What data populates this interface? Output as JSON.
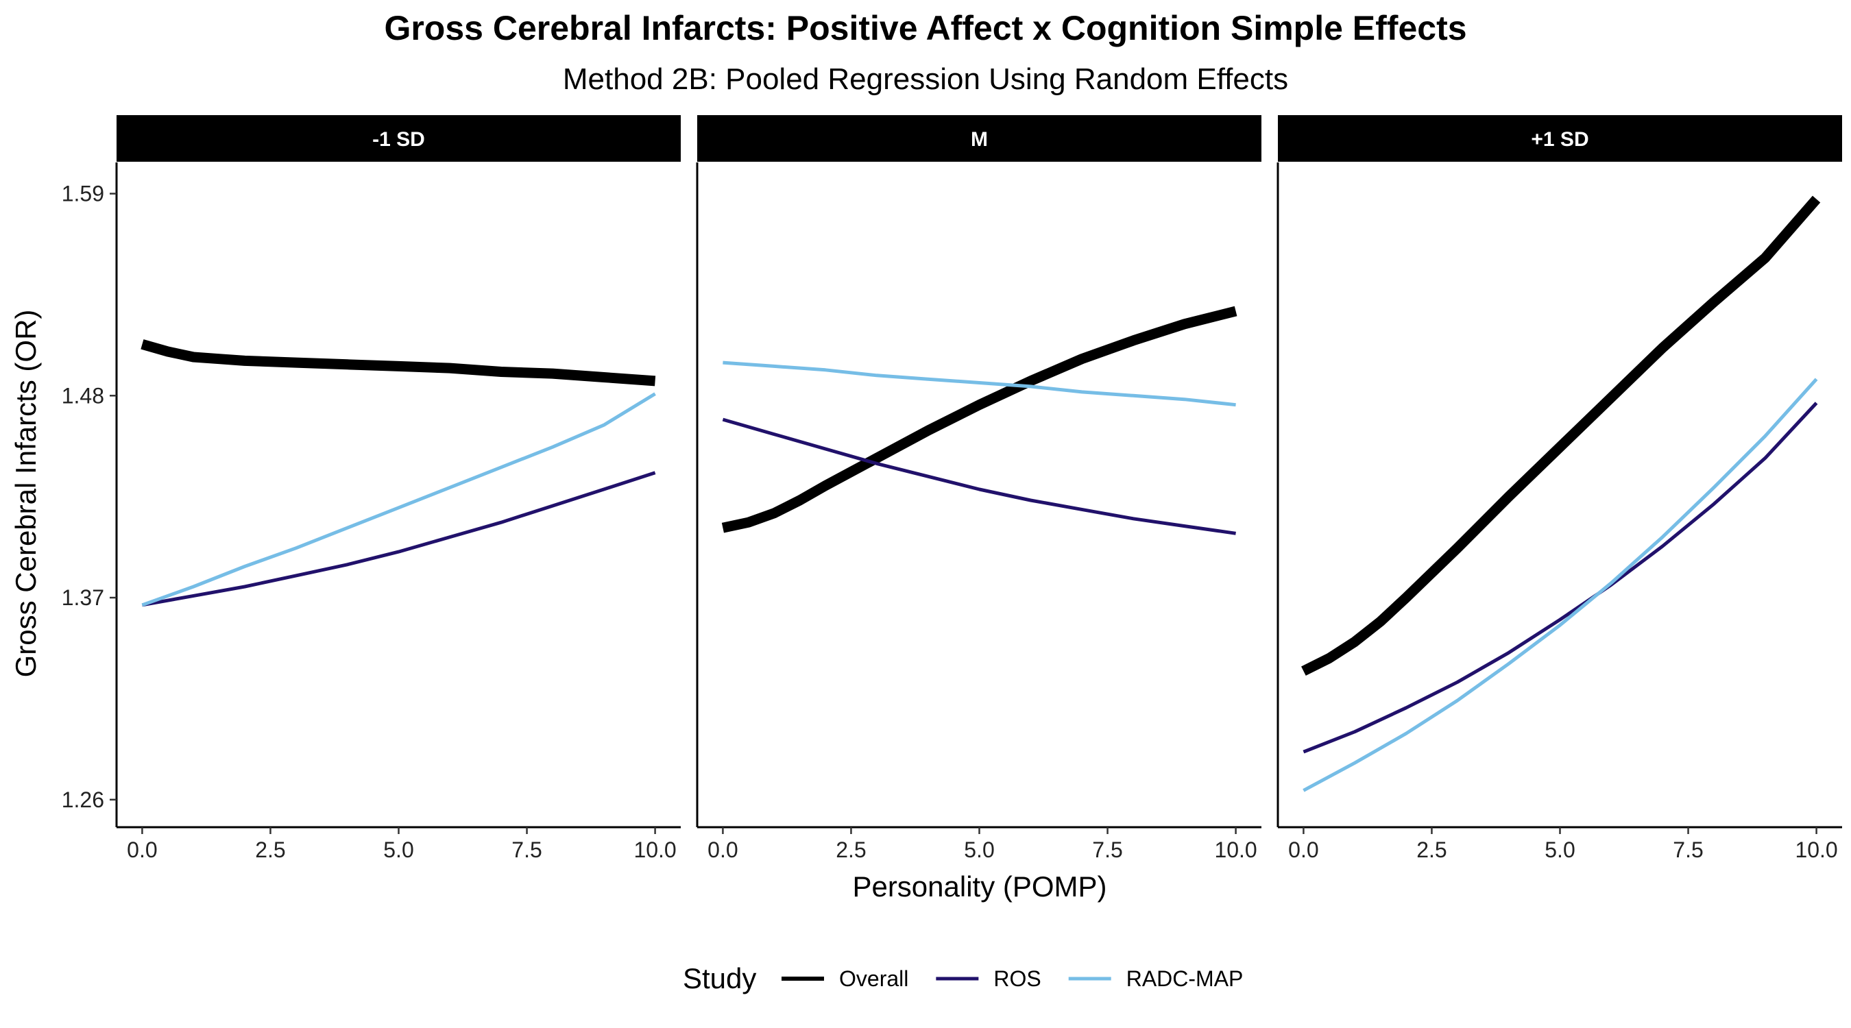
{
  "chart_data": {
    "type": "line",
    "title": "Gross Cerebral Infarcts: Positive Affect x Cognition Simple Effects",
    "subtitle": "Method 2B: Pooled Regression Using Random Effects",
    "xlabel": "Personality (POMP)",
    "ylabel": "Gross Cerebral Infarcts (OR)",
    "xlim": [
      -0.5,
      10.5
    ],
    "ylim": [
      1.245,
      1.607
    ],
    "x_ticks": [
      0.0,
      2.5,
      5.0,
      7.5,
      10.0
    ],
    "x_tick_labels": [
      "0.0",
      "2.5",
      "5.0",
      "7.5",
      "10.0"
    ],
    "y_ticks": [
      1.26,
      1.37,
      1.48,
      1.59
    ],
    "y_tick_labels": [
      "1.26",
      "1.37",
      "1.48",
      "1.59"
    ],
    "grid": false,
    "legend": {
      "title": "Study",
      "position": "bottom",
      "entries": [
        {
          "name": "Overall",
          "color": "#000000"
        },
        {
          "name": "ROS",
          "color": "#21116b"
        },
        {
          "name": "RADC-MAP",
          "color": "#76bde6"
        }
      ]
    },
    "series_styles": {
      "Overall": {
        "color": "#000000",
        "width": 15
      },
      "ROS": {
        "color": "#21116b",
        "width": 5
      },
      "RADC-MAP": {
        "color": "#76bde6",
        "width": 5
      }
    },
    "panels": [
      {
        "label": "-1 SD",
        "series": [
          {
            "name": "Overall",
            "x": [
              0,
              0.5,
              1,
              1.5,
              2,
              3,
              4,
              5,
              6,
              7,
              8,
              9,
              10
            ],
            "y": [
              1.508,
              1.504,
              1.501,
              1.5,
              1.499,
              1.498,
              1.497,
              1.496,
              1.495,
              1.493,
              1.492,
              1.49,
              1.488
            ]
          },
          {
            "name": "ROS",
            "x": [
              0,
              1,
              2,
              3,
              4,
              5,
              6,
              7,
              8,
              9,
              10
            ],
            "y": [
              1.366,
              1.371,
              1.376,
              1.382,
              1.388,
              1.395,
              1.403,
              1.411,
              1.42,
              1.429,
              1.438
            ]
          },
          {
            "name": "RADC-MAP",
            "x": [
              0,
              1,
              2,
              3,
              4,
              5,
              6,
              7,
              8,
              9,
              10
            ],
            "y": [
              1.366,
              1.376,
              1.387,
              1.397,
              1.408,
              1.419,
              1.43,
              1.441,
              1.452,
              1.464,
              1.481
            ]
          }
        ]
      },
      {
        "label": "M",
        "series": [
          {
            "name": "Overall",
            "x": [
              0,
              0.5,
              1,
              1.5,
              2,
              3,
              4,
              5,
              6,
              7,
              8,
              9,
              10
            ],
            "y": [
              1.408,
              1.411,
              1.416,
              1.423,
              1.431,
              1.446,
              1.461,
              1.475,
              1.488,
              1.5,
              1.51,
              1.519,
              1.526
            ]
          },
          {
            "name": "ROS",
            "x": [
              0,
              1,
              2,
              3,
              4,
              5,
              6,
              7,
              8,
              9,
              10
            ],
            "y": [
              1.467,
              1.459,
              1.451,
              1.443,
              1.436,
              1.429,
              1.423,
              1.418,
              1.413,
              1.409,
              1.405
            ]
          },
          {
            "name": "RADC-MAP",
            "x": [
              0,
              1,
              2,
              3,
              4,
              5,
              6,
              7,
              8,
              9,
              10
            ],
            "y": [
              1.498,
              1.496,
              1.494,
              1.491,
              1.489,
              1.487,
              1.485,
              1.482,
              1.48,
              1.478,
              1.475
            ]
          }
        ]
      },
      {
        "label": "+1 SD",
        "series": [
          {
            "name": "Overall",
            "x": [
              0,
              0.5,
              1,
              1.5,
              2,
              3,
              4,
              5,
              6,
              7,
              8,
              9,
              10
            ],
            "y": [
              1.33,
              1.337,
              1.346,
              1.357,
              1.37,
              1.397,
              1.425,
              1.452,
              1.479,
              1.506,
              1.531,
              1.555,
              1.587
            ]
          },
          {
            "name": "ROS",
            "x": [
              0,
              1,
              2,
              3,
              4,
              5,
              6,
              7,
              8,
              9,
              10
            ],
            "y": [
              1.286,
              1.297,
              1.31,
              1.324,
              1.34,
              1.358,
              1.377,
              1.398,
              1.421,
              1.446,
              1.476
            ]
          },
          {
            "name": "RADC-MAP",
            "x": [
              0,
              1,
              2,
              3,
              4,
              5,
              6,
              7,
              8,
              9,
              10
            ],
            "y": [
              1.265,
              1.28,
              1.296,
              1.314,
              1.334,
              1.355,
              1.378,
              1.403,
              1.43,
              1.458,
              1.489
            ]
          }
        ]
      }
    ]
  }
}
